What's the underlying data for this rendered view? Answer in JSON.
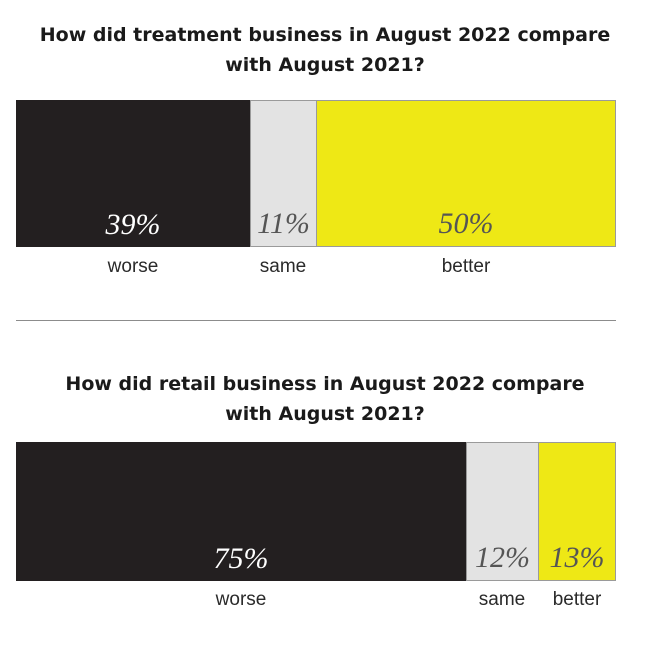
{
  "colors": {
    "worse": "#231f20",
    "same": "#e3e3e3",
    "better": "#eee815",
    "worse_text": "#ffffff",
    "same_text": "#555555",
    "better_text": "#555555"
  },
  "chart_data": [
    {
      "type": "bar",
      "orientation": "stacked-horizontal",
      "title": "How did treatment business in August 2022 compare with August 2021?",
      "title_lines": [
        "How did treatment business in August 2022 compare",
        "with August 2021?"
      ],
      "categories": [
        "worse",
        "same",
        "better"
      ],
      "values": [
        39,
        11,
        50
      ],
      "value_labels": [
        "39%",
        "11%",
        "50%"
      ],
      "unit": "%"
    },
    {
      "type": "bar",
      "orientation": "stacked-horizontal",
      "title": "How did retail business in August 2022 compare with August 2021?",
      "title_lines": [
        "How did retail business in August 2022 compare",
        "with August 2021?"
      ],
      "categories": [
        "worse",
        "same",
        "better"
      ],
      "values": [
        75,
        12,
        13
      ],
      "value_labels": [
        "75%",
        "12%",
        "13%"
      ],
      "unit": "%"
    }
  ]
}
